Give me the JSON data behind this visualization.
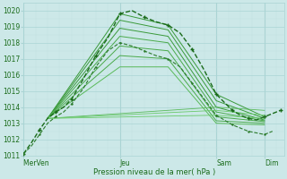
{
  "xlabel": "Pression niveau de la mer( hPa )",
  "bg_color": "#cce8e8",
  "grid_color_major": "#aad4d4",
  "grid_color_minor": "#c0e0e0",
  "line_color_dark": "#1a6b1a",
  "line_color_mid": "#2d8a2d",
  "line_color_light": "#4da84d",
  "ylim": [
    1011,
    1020.5
  ],
  "yticks": [
    1011,
    1012,
    1013,
    1014,
    1015,
    1016,
    1017,
    1018,
    1019,
    1020
  ],
  "day_labels": [
    "Mer​Ven",
    "Jeu",
    "Sam",
    "Dim"
  ],
  "day_positions": [
    0,
    48,
    96,
    120
  ],
  "xtick_minor_step": 6,
  "total_hours": 130,
  "series": [
    {
      "x": [
        0,
        4,
        8,
        12,
        16,
        20,
        24,
        30,
        36,
        42,
        48,
        54,
        60,
        66,
        72,
        78,
        84,
        90,
        96,
        100,
        104,
        108,
        112,
        116,
        120,
        124,
        128
      ],
      "y": [
        1011.1,
        1011.8,
        1012.6,
        1013.3,
        1013.7,
        1014.0,
        1014.5,
        1015.8,
        1017.2,
        1018.3,
        1019.8,
        1020.0,
        1019.6,
        1019.3,
        1019.1,
        1018.6,
        1017.6,
        1016.3,
        1014.8,
        1014.3,
        1013.8,
        1013.5,
        1013.3,
        1013.2,
        1013.4,
        1013.6,
        1013.8
      ],
      "style": "dotdash",
      "lw": 1.0,
      "color": "#1a6b1a",
      "marker": "+"
    },
    {
      "x": [
        0,
        4,
        8,
        12,
        16,
        20,
        24,
        30,
        36,
        42,
        48,
        54,
        60,
        66,
        72,
        78,
        84,
        90,
        96,
        100,
        104,
        108,
        112,
        116,
        120,
        124
      ],
      "y": [
        1011.1,
        1011.6,
        1012.3,
        1013.0,
        1013.4,
        1013.7,
        1014.2,
        1015.2,
        1016.5,
        1017.5,
        1018.0,
        1017.8,
        1017.5,
        1017.2,
        1017.0,
        1016.5,
        1015.5,
        1014.5,
        1013.5,
        1013.2,
        1012.9,
        1012.7,
        1012.5,
        1012.4,
        1012.3,
        1012.5
      ],
      "style": "dotdash",
      "lw": 0.8,
      "color": "#2a7a2a",
      "marker": "."
    },
    {
      "x": [
        12,
        48,
        72,
        96,
        120
      ],
      "y": [
        1013.3,
        1019.8,
        1019.1,
        1014.8,
        1013.4
      ],
      "style": "solid",
      "lw": 0.7,
      "color": "#3a9a3a"
    },
    {
      "x": [
        12,
        48,
        72,
        96,
        120
      ],
      "y": [
        1013.3,
        1019.4,
        1018.8,
        1014.4,
        1013.3
      ],
      "style": "solid",
      "lw": 0.7,
      "color": "#3a9a3a"
    },
    {
      "x": [
        12,
        48,
        72,
        96,
        120
      ],
      "y": [
        1013.3,
        1018.9,
        1018.4,
        1014.0,
        1013.2
      ],
      "style": "solid",
      "lw": 0.7,
      "color": "#3a9a3a"
    },
    {
      "x": [
        12,
        48,
        72,
        96,
        120
      ],
      "y": [
        1013.3,
        1018.4,
        1018.0,
        1013.7,
        1013.15
      ],
      "style": "solid",
      "lw": 0.7,
      "color": "#4aaa4a"
    },
    {
      "x": [
        12,
        48,
        72,
        96,
        120
      ],
      "y": [
        1013.3,
        1017.8,
        1017.5,
        1013.4,
        1013.1
      ],
      "style": "solid",
      "lw": 0.7,
      "color": "#4aaa4a"
    },
    {
      "x": [
        12,
        48,
        72,
        96,
        120
      ],
      "y": [
        1013.3,
        1017.2,
        1017.0,
        1013.15,
        1013.0
      ],
      "style": "solid",
      "lw": 0.7,
      "color": "#4aaa4a"
    },
    {
      "x": [
        12,
        48,
        72,
        96,
        120
      ],
      "y": [
        1013.3,
        1016.5,
        1016.5,
        1013.0,
        1012.9
      ],
      "style": "solid",
      "lw": 0.7,
      "color": "#5aba5a"
    },
    {
      "x": [
        12,
        96,
        120
      ],
      "y": [
        1013.3,
        1014.0,
        1013.8
      ],
      "style": "solid",
      "lw": 0.6,
      "color": "#5aba5a"
    },
    {
      "x": [
        12,
        96,
        120
      ],
      "y": [
        1013.3,
        1013.8,
        1013.5
      ],
      "style": "solid",
      "lw": 0.6,
      "color": "#6aca6a"
    },
    {
      "x": [
        12,
        96,
        120
      ],
      "y": [
        1013.3,
        1013.5,
        1013.3
      ],
      "style": "solid",
      "lw": 0.6,
      "color": "#6aca6a"
    }
  ]
}
